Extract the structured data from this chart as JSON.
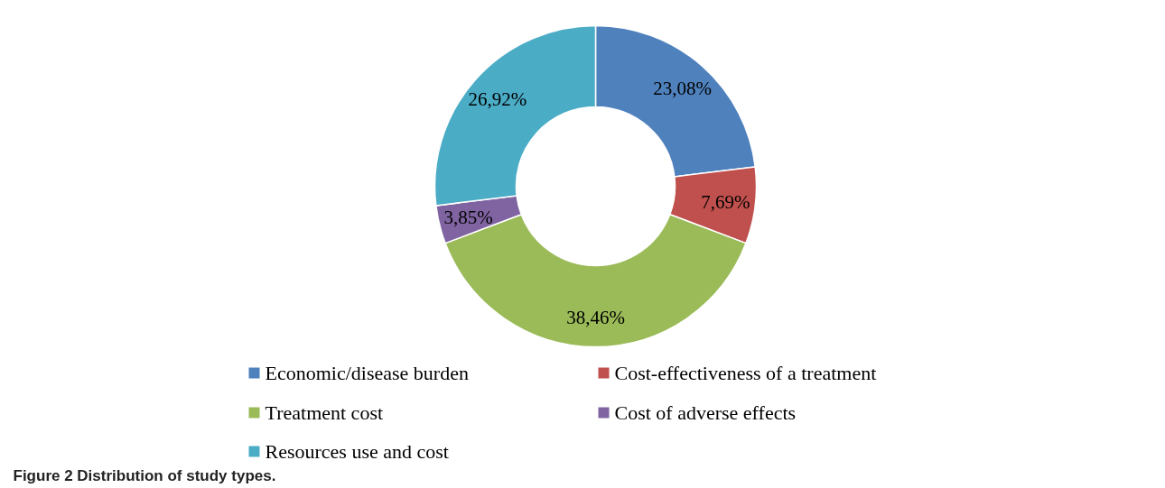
{
  "chart_data": {
    "type": "donut",
    "categories": [
      "Economic/disease burden",
      "Cost-effectiveness of a treatment",
      "Treatment cost",
      "Cost of adverse effects",
      "Resources use and cost"
    ],
    "values": [
      23.08,
      7.69,
      38.46,
      3.85,
      26.92
    ],
    "colors": [
      "#4f81bd",
      "#c0504d",
      "#9bbb59",
      "#8064a2",
      "#4bacc6"
    ],
    "value_labels": [
      "23,08%",
      "7,69%",
      "38,46%",
      "3,85%",
      "26,92%"
    ],
    "legend": "bottom",
    "annotations": [
      "Figure 2 Distribution of study types."
    ]
  }
}
